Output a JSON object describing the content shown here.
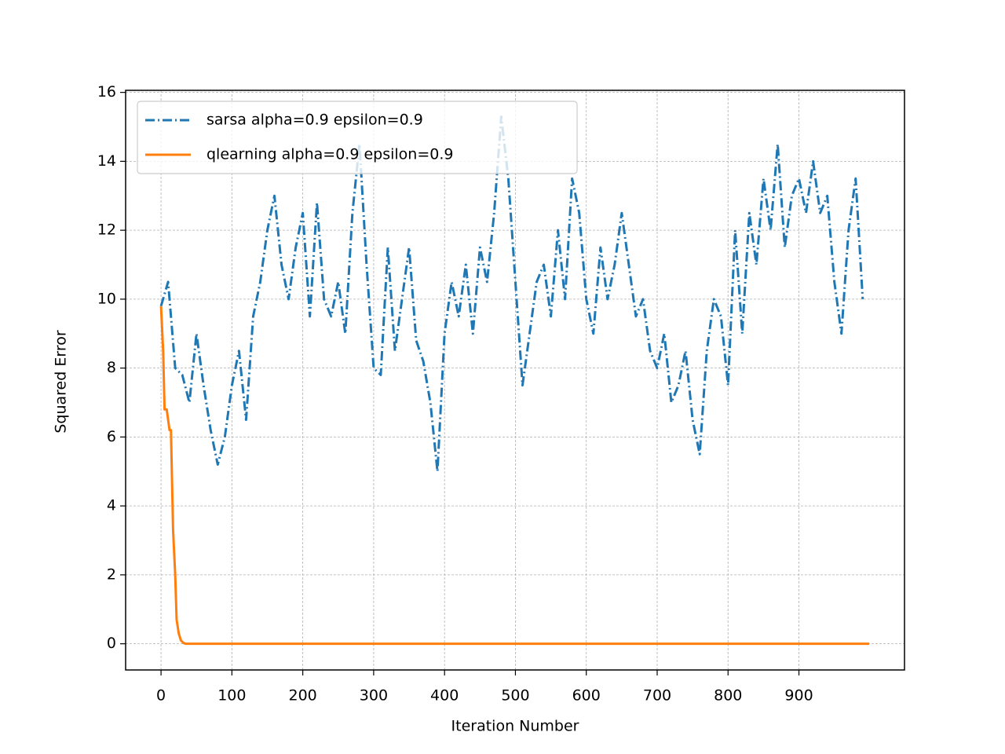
{
  "chart_data": {
    "type": "line",
    "xlabel": "Iteration Number",
    "ylabel": "Squared Error",
    "xlim": [
      -49.95,
      1048.95
    ],
    "ylim": [
      -0.76,
      16.06
    ],
    "xticks": [
      0,
      100,
      200,
      300,
      400,
      500,
      600,
      700,
      800,
      900
    ],
    "yticks": [
      0,
      2,
      4,
      6,
      8,
      10,
      12,
      14,
      16
    ],
    "grid": true,
    "legend": "upper left",
    "series": [
      {
        "name": "sarsa alpha=0.9 epsilon=0.9",
        "color": "#1f77b4",
        "linestyle": "dashdot",
        "x": [
          0,
          10,
          20,
          30,
          40,
          50,
          60,
          70,
          80,
          90,
          100,
          110,
          120,
          130,
          140,
          150,
          160,
          170,
          180,
          190,
          200,
          210,
          220,
          230,
          240,
          250,
          260,
          270,
          280,
          290,
          300,
          310,
          320,
          330,
          340,
          350,
          360,
          370,
          380,
          390,
          400,
          410,
          420,
          430,
          440,
          450,
          460,
          470,
          480,
          490,
          500,
          510,
          520,
          530,
          540,
          550,
          560,
          570,
          580,
          590,
          600,
          610,
          620,
          630,
          640,
          650,
          660,
          670,
          680,
          690,
          700,
          710,
          720,
          730,
          740,
          750,
          760,
          770,
          780,
          790,
          800,
          810,
          820,
          830,
          840,
          850,
          860,
          870,
          880,
          890,
          900,
          910,
          920,
          930,
          940,
          950,
          960,
          970,
          980,
          990
        ],
        "values": [
          9.8,
          10.5,
          8.0,
          7.8,
          7.0,
          9.0,
          7.5,
          6.2,
          5.2,
          6.0,
          7.5,
          8.5,
          6.5,
          9.5,
          10.5,
          12.0,
          13.0,
          11.0,
          10.0,
          11.5,
          12.5,
          9.5,
          12.8,
          10.0,
          9.5,
          10.5,
          9.0,
          12.5,
          14.5,
          11.0,
          8.0,
          7.8,
          11.5,
          8.5,
          10.0,
          11.5,
          8.8,
          8.2,
          7.0,
          5.0,
          9.0,
          10.5,
          9.5,
          11.0,
          9.0,
          11.5,
          10.5,
          12.5,
          15.3,
          13.5,
          10.5,
          7.5,
          9.0,
          10.5,
          11.0,
          9.5,
          12.0,
          10.0,
          13.5,
          12.5,
          10.0,
          9.0,
          11.5,
          10.0,
          11.0,
          12.5,
          11.0,
          9.5,
          10.0,
          8.5,
          8.0,
          9.0,
          7.0,
          7.5,
          8.5,
          6.5,
          5.5,
          8.5,
          10.0,
          9.5,
          7.5,
          12.0,
          9.0,
          12.5,
          11.0,
          13.5,
          12.0,
          14.5,
          11.5,
          13.0,
          13.5,
          12.5,
          14.0,
          12.5,
          13.0,
          10.5,
          9.0,
          12.0,
          13.5,
          10.0
        ]
      },
      {
        "name": "qlearning alpha=0.9 epsilon=0.9",
        "color": "#ff7f0e",
        "linestyle": "solid",
        "x": [
          0,
          3,
          5,
          8,
          12,
          14,
          17,
          20,
          22,
          25,
          28,
          32,
          35,
          999
        ],
        "values": [
          9.8,
          8.5,
          6.8,
          6.8,
          6.2,
          6.2,
          3.3,
          2.0,
          0.7,
          0.3,
          0.1,
          0.02,
          0,
          0
        ]
      }
    ]
  }
}
